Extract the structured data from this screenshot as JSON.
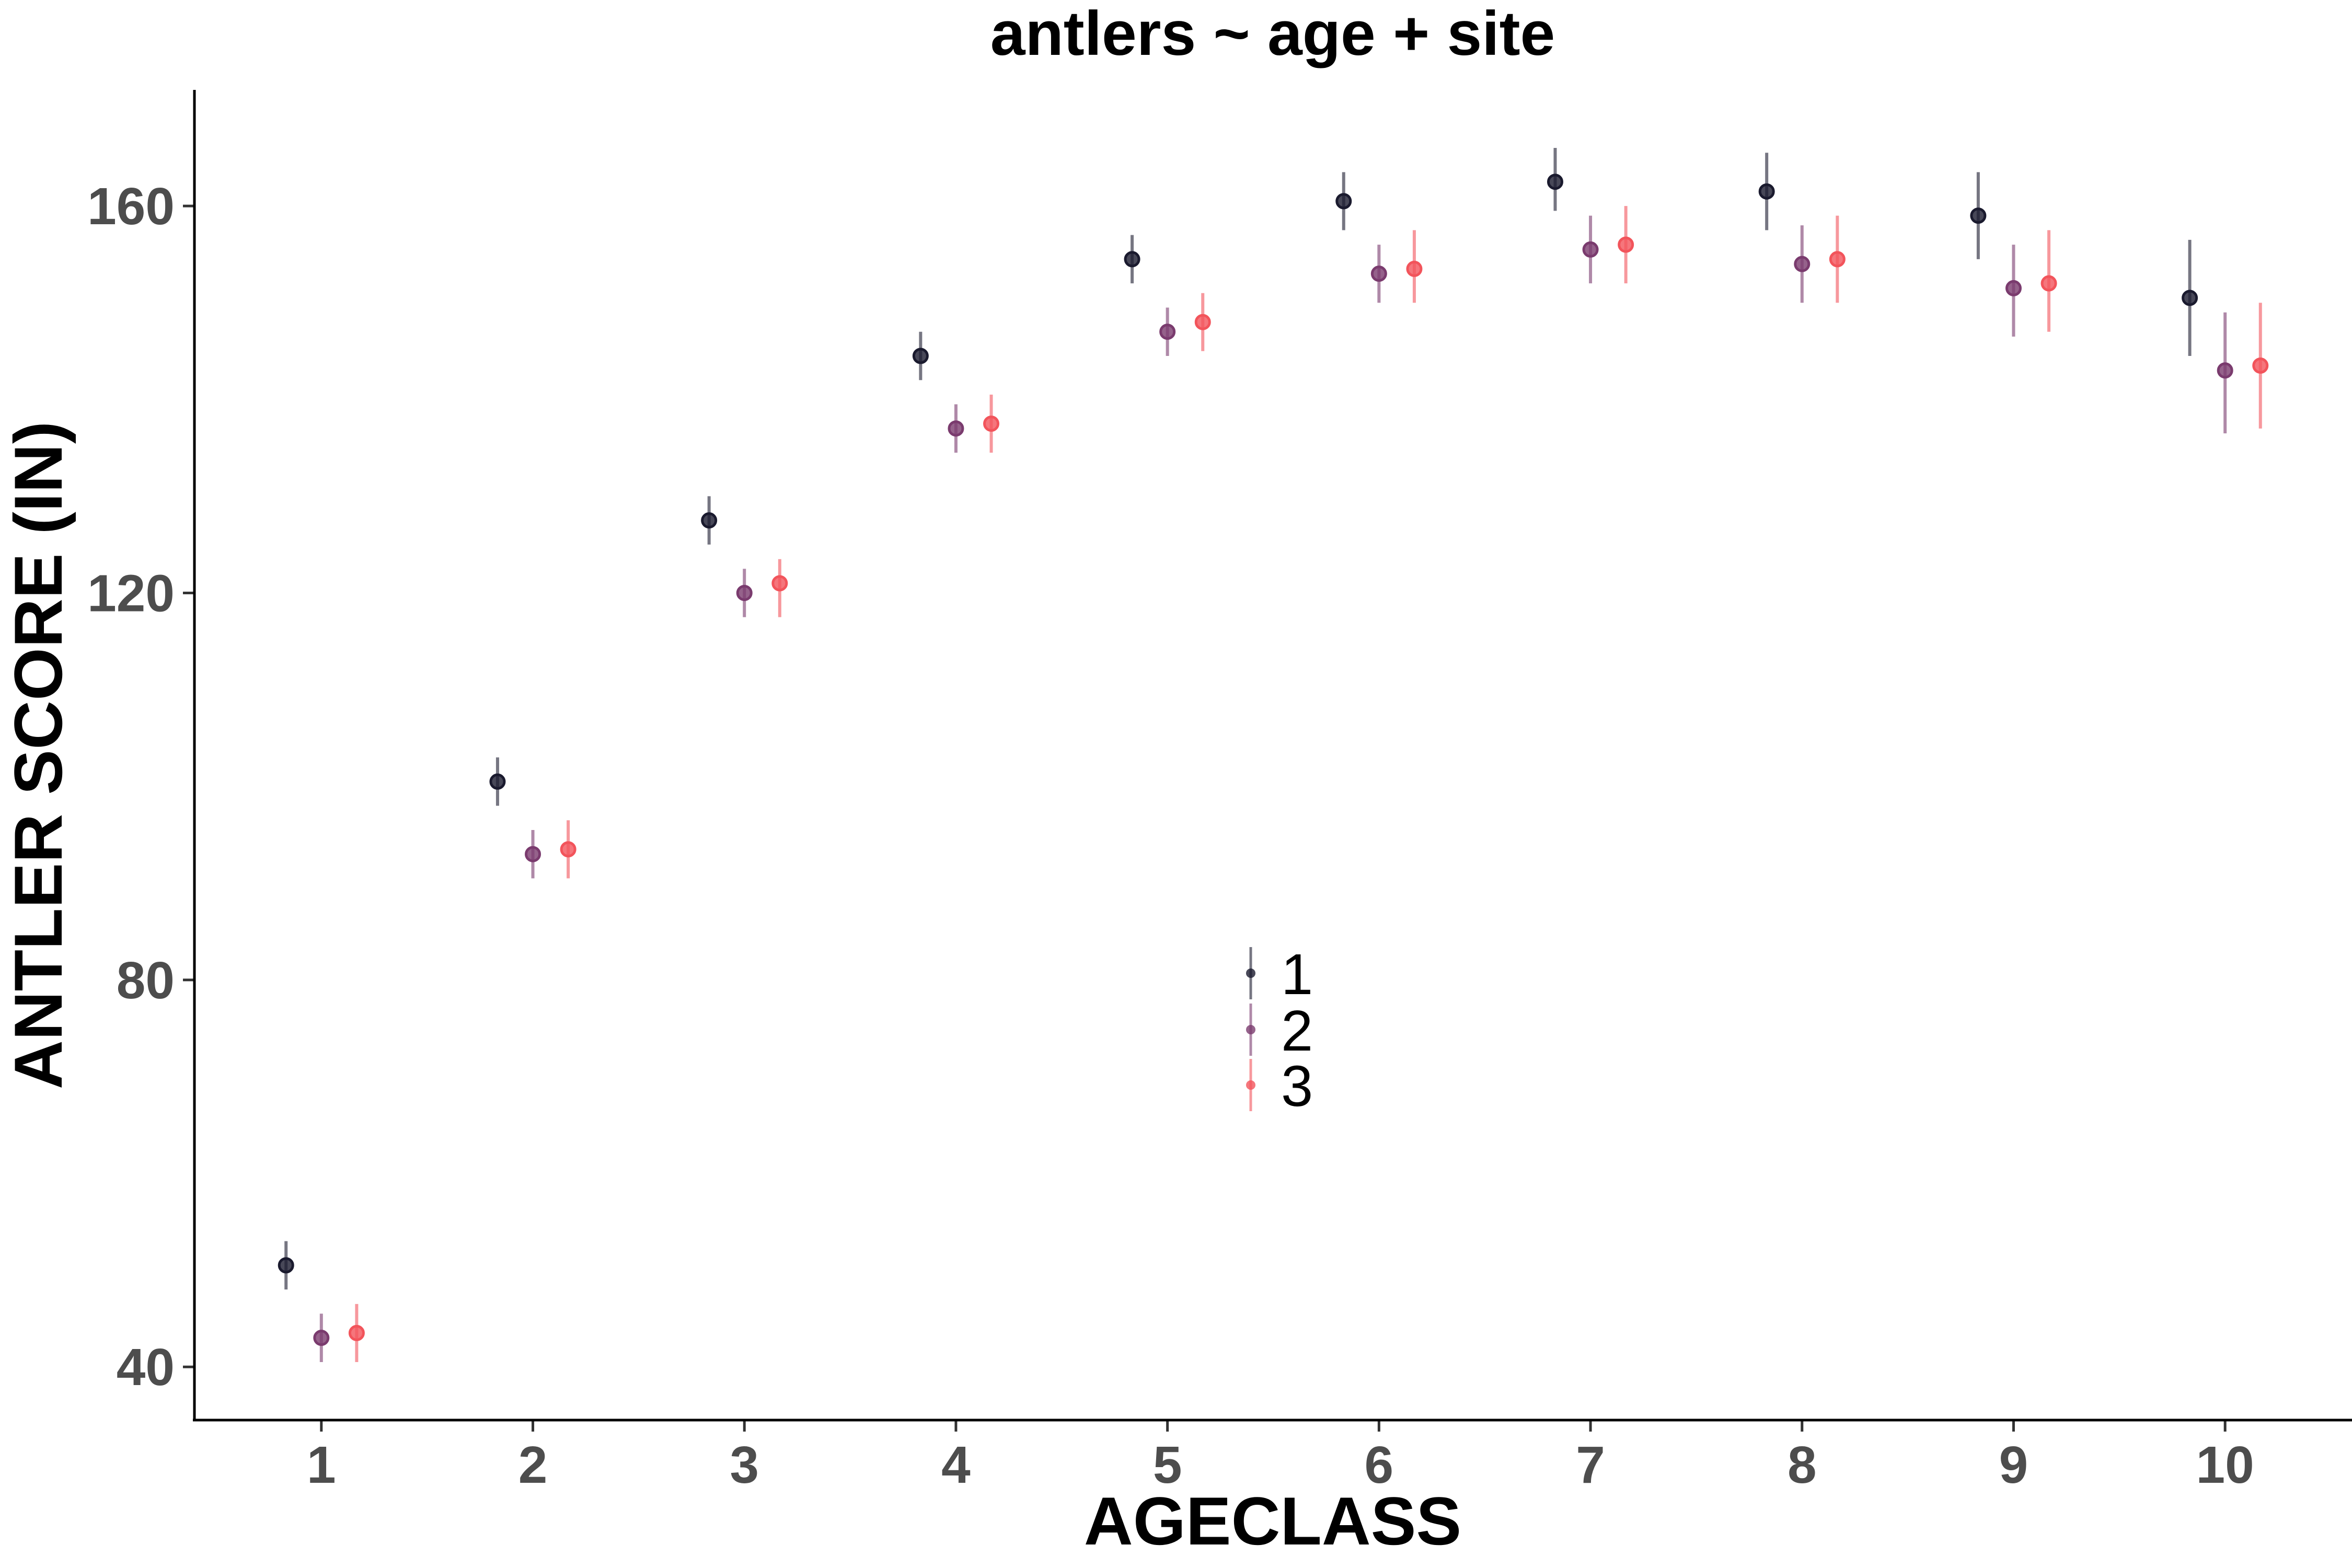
{
  "chart_data": {
    "type": "scatter",
    "title": "antlers ~ age + site",
    "xlabel": "AGECLASS",
    "ylabel": "ANTLER SCORE (IN)",
    "x_ticks": [
      "1",
      "2",
      "3",
      "4",
      "5",
      "6",
      "7",
      "8",
      "9",
      "10"
    ],
    "y_ticks": [
      40,
      80,
      120,
      160
    ],
    "ylim": [
      34.5,
      172
    ],
    "grid": false,
    "legend_position": "center",
    "error_bars": true,
    "dodge_offsets": [
      -0.167,
      0,
      0.167
    ],
    "series": [
      {
        "name": "1",
        "color": "#1a1a2e",
        "x": [
          1,
          2,
          3,
          4,
          5,
          6,
          7,
          8,
          9,
          10
        ],
        "y": [
          50.5,
          100.5,
          127.5,
          144.5,
          154.5,
          160.5,
          162.5,
          161.5,
          159.0,
          150.5
        ],
        "ymin": [
          48.0,
          98.0,
          125.0,
          142.0,
          152.0,
          157.5,
          159.5,
          157.5,
          154.5,
          144.5
        ],
        "ymax": [
          53.0,
          103.0,
          130.0,
          147.0,
          157.0,
          163.5,
          166.0,
          165.5,
          163.5,
          156.5
        ]
      },
      {
        "name": "2",
        "color": "#7a3b6e",
        "x": [
          1,
          2,
          3,
          4,
          5,
          6,
          7,
          8,
          9,
          10
        ],
        "y": [
          43.0,
          93.0,
          120.0,
          137.0,
          147.0,
          153.0,
          155.5,
          154.0,
          151.5,
          143.0
        ],
        "ymin": [
          40.5,
          90.5,
          117.5,
          134.5,
          144.5,
          150.0,
          152.0,
          150.0,
          146.5,
          136.5
        ],
        "ymax": [
          45.5,
          95.5,
          122.5,
          139.5,
          149.5,
          156.0,
          159.0,
          158.0,
          156.0,
          149.0
        ]
      },
      {
        "name": "3",
        "color": "#f2545b",
        "x": [
          1,
          2,
          3,
          4,
          5,
          6,
          7,
          8,
          9,
          10
        ],
        "y": [
          43.5,
          93.5,
          121.0,
          137.5,
          148.0,
          153.5,
          156.0,
          154.5,
          152.0,
          143.5
        ],
        "ymin": [
          40.5,
          90.5,
          117.5,
          134.5,
          145.0,
          150.0,
          152.0,
          150.0,
          147.0,
          137.0
        ],
        "ymax": [
          46.5,
          96.5,
          123.5,
          140.5,
          151.0,
          157.5,
          160.0,
          159.0,
          157.5,
          150.0
        ]
      }
    ]
  }
}
